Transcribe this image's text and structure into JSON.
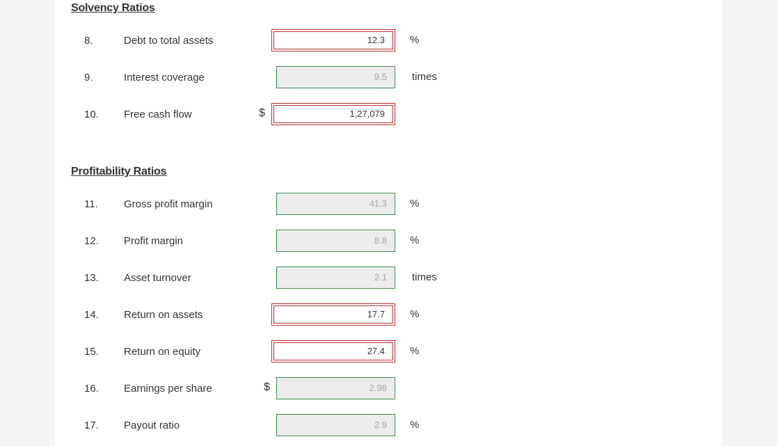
{
  "sections": {
    "solvency": {
      "title": "Solvency Ratios"
    },
    "profitability": {
      "title": "Profitability Ratios"
    }
  },
  "rows": {
    "r8": {
      "number": "8.",
      "label": "Debt to total assets",
      "prefix": "",
      "value": "12.3",
      "unit": "%",
      "status": "wrong"
    },
    "r9": {
      "number": "9.",
      "label": "Interest coverage",
      "prefix": "",
      "value": "9.5",
      "unit": "times",
      "status": "answered"
    },
    "r10": {
      "number": "10.",
      "label": "Free cash flow",
      "prefix": "$",
      "value": "1,27,079",
      "unit": "",
      "status": "wrong"
    },
    "r11": {
      "number": "11.",
      "label": "Gross profit margin",
      "prefix": "",
      "value": "41.3",
      "unit": "%",
      "status": "answered"
    },
    "r12": {
      "number": "12.",
      "label": "Profit margin",
      "prefix": "",
      "value": "8.8",
      "unit": "%",
      "status": "answered"
    },
    "r13": {
      "number": "13.",
      "label": "Asset turnover",
      "prefix": "",
      "value": "2.1",
      "unit": "times",
      "status": "answered"
    },
    "r14": {
      "number": "14.",
      "label": "Return on assets",
      "prefix": "",
      "value": "17.7",
      "unit": "%",
      "status": "wrong"
    },
    "r15": {
      "number": "15.",
      "label": "Return on equity",
      "prefix": "",
      "value": "27.4",
      "unit": "%",
      "status": "wrong"
    },
    "r16": {
      "number": "16.",
      "label": "Earnings per share",
      "prefix": "$",
      "value": "2.98",
      "unit": "",
      "status": "answered"
    },
    "r17": {
      "number": "17.",
      "label": "Payout ratio",
      "prefix": "",
      "value": "2.9",
      "unit": "%",
      "status": "answered"
    }
  },
  "colors": {
    "correct_border": "#3f8a4a",
    "wrong_border": "#b82a2a",
    "readonly_fill": "#ececec"
  }
}
